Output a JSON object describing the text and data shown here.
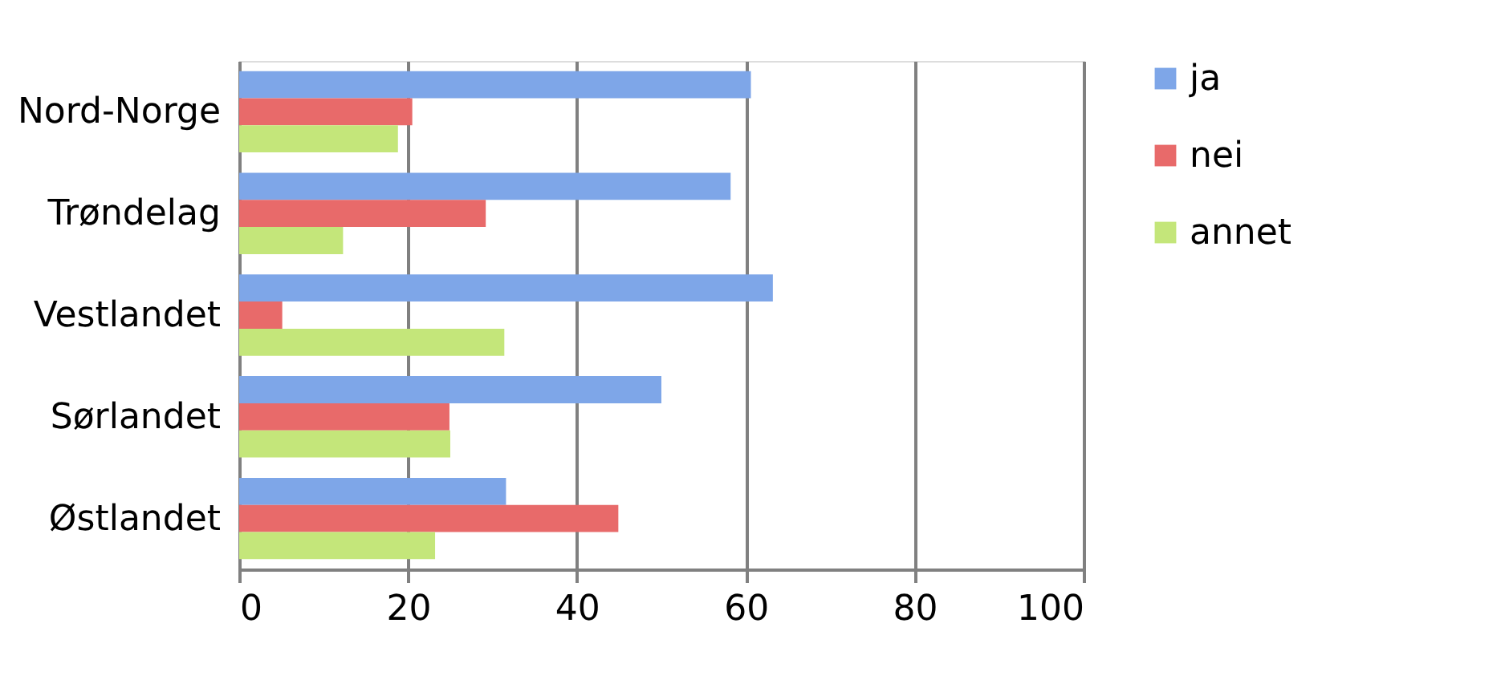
{
  "chart_data": {
    "type": "bar",
    "orientation": "horizontal",
    "categories": [
      "Nord-Norge",
      "Trøndelag",
      "Vestlandet",
      "Sørlandet",
      "Østlandet"
    ],
    "series": [
      {
        "name": "ja",
        "color": "#7ea6e8",
        "values": [
          60.6,
          58.2,
          63.2,
          50,
          31.6
        ]
      },
      {
        "name": "nei",
        "color": "#e86a6a",
        "values": [
          20.5,
          29.2,
          5.1,
          24.9,
          44.9
        ]
      },
      {
        "name": "annet",
        "color": "#c4e67a",
        "values": [
          18.8,
          12.3,
          31.4,
          25,
          23.2
        ]
      }
    ],
    "xlim": [
      0,
      100
    ],
    "xticks": [
      0,
      20,
      40,
      60,
      80,
      100
    ],
    "grid": "x",
    "legend": "right"
  }
}
